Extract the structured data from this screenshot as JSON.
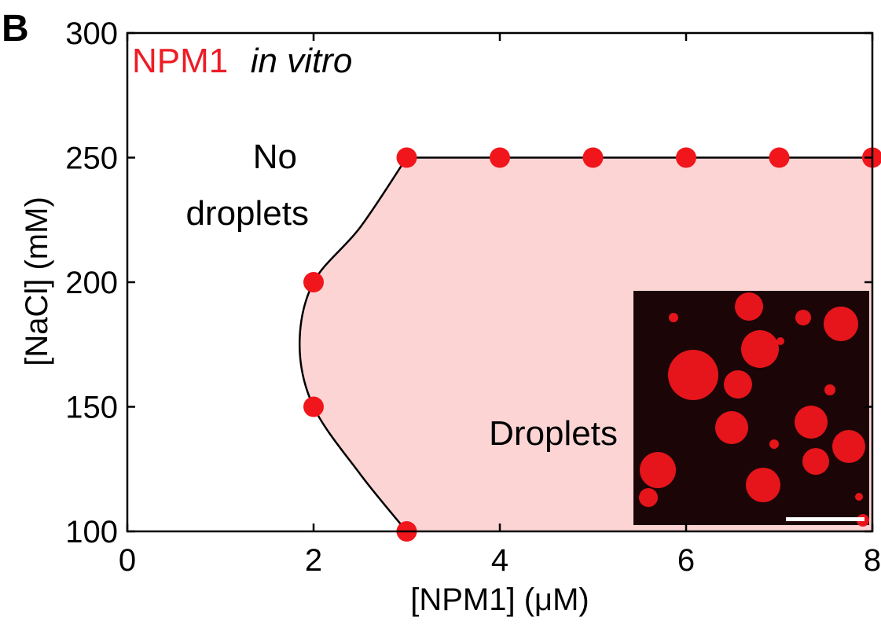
{
  "panel_letter": "B",
  "colors": {
    "points": "#f0161c",
    "title_accent": "#ee1c25",
    "region_fill": "#fcd4d4",
    "inset_background": "#1c0506",
    "inset_droplets": "#f0161c",
    "scale_bar": "#ffffff"
  },
  "chart_data": {
    "type": "scatter",
    "title_parts": [
      "NPM1",
      "in vitro"
    ],
    "xlabel": "[NPM1] (μM)",
    "ylabel": "[NaCl] (mM)",
    "xlim": [
      0,
      8
    ],
    "ylim": [
      100,
      300
    ],
    "xticks": [
      0,
      2,
      4,
      6,
      8
    ],
    "yticks": [
      100,
      150,
      200,
      250,
      300
    ],
    "grid": false,
    "points": [
      {
        "x": 3,
        "y": 250
      },
      {
        "x": 4,
        "y": 250
      },
      {
        "x": 5,
        "y": 250
      },
      {
        "x": 6,
        "y": 250
      },
      {
        "x": 7,
        "y": 250
      },
      {
        "x": 8,
        "y": 250
      },
      {
        "x": 2,
        "y": 200
      },
      {
        "x": 2,
        "y": 150
      },
      {
        "x": 3,
        "y": 100
      }
    ],
    "phase_boundary": [
      {
        "x": 3,
        "y": 250
      },
      {
        "x": 2.5,
        "y": 222
      },
      {
        "x": 2.0,
        "y": 200
      },
      {
        "x": 1.85,
        "y": 175
      },
      {
        "x": 2.0,
        "y": 150
      },
      {
        "x": 2.5,
        "y": 123
      },
      {
        "x": 3,
        "y": 100
      }
    ],
    "annotations": {
      "no_droplets": [
        "No",
        "droplets"
      ],
      "droplets": "Droplets"
    },
    "inset": {
      "description_label": "",
      "has_scale_bar": true
    }
  }
}
